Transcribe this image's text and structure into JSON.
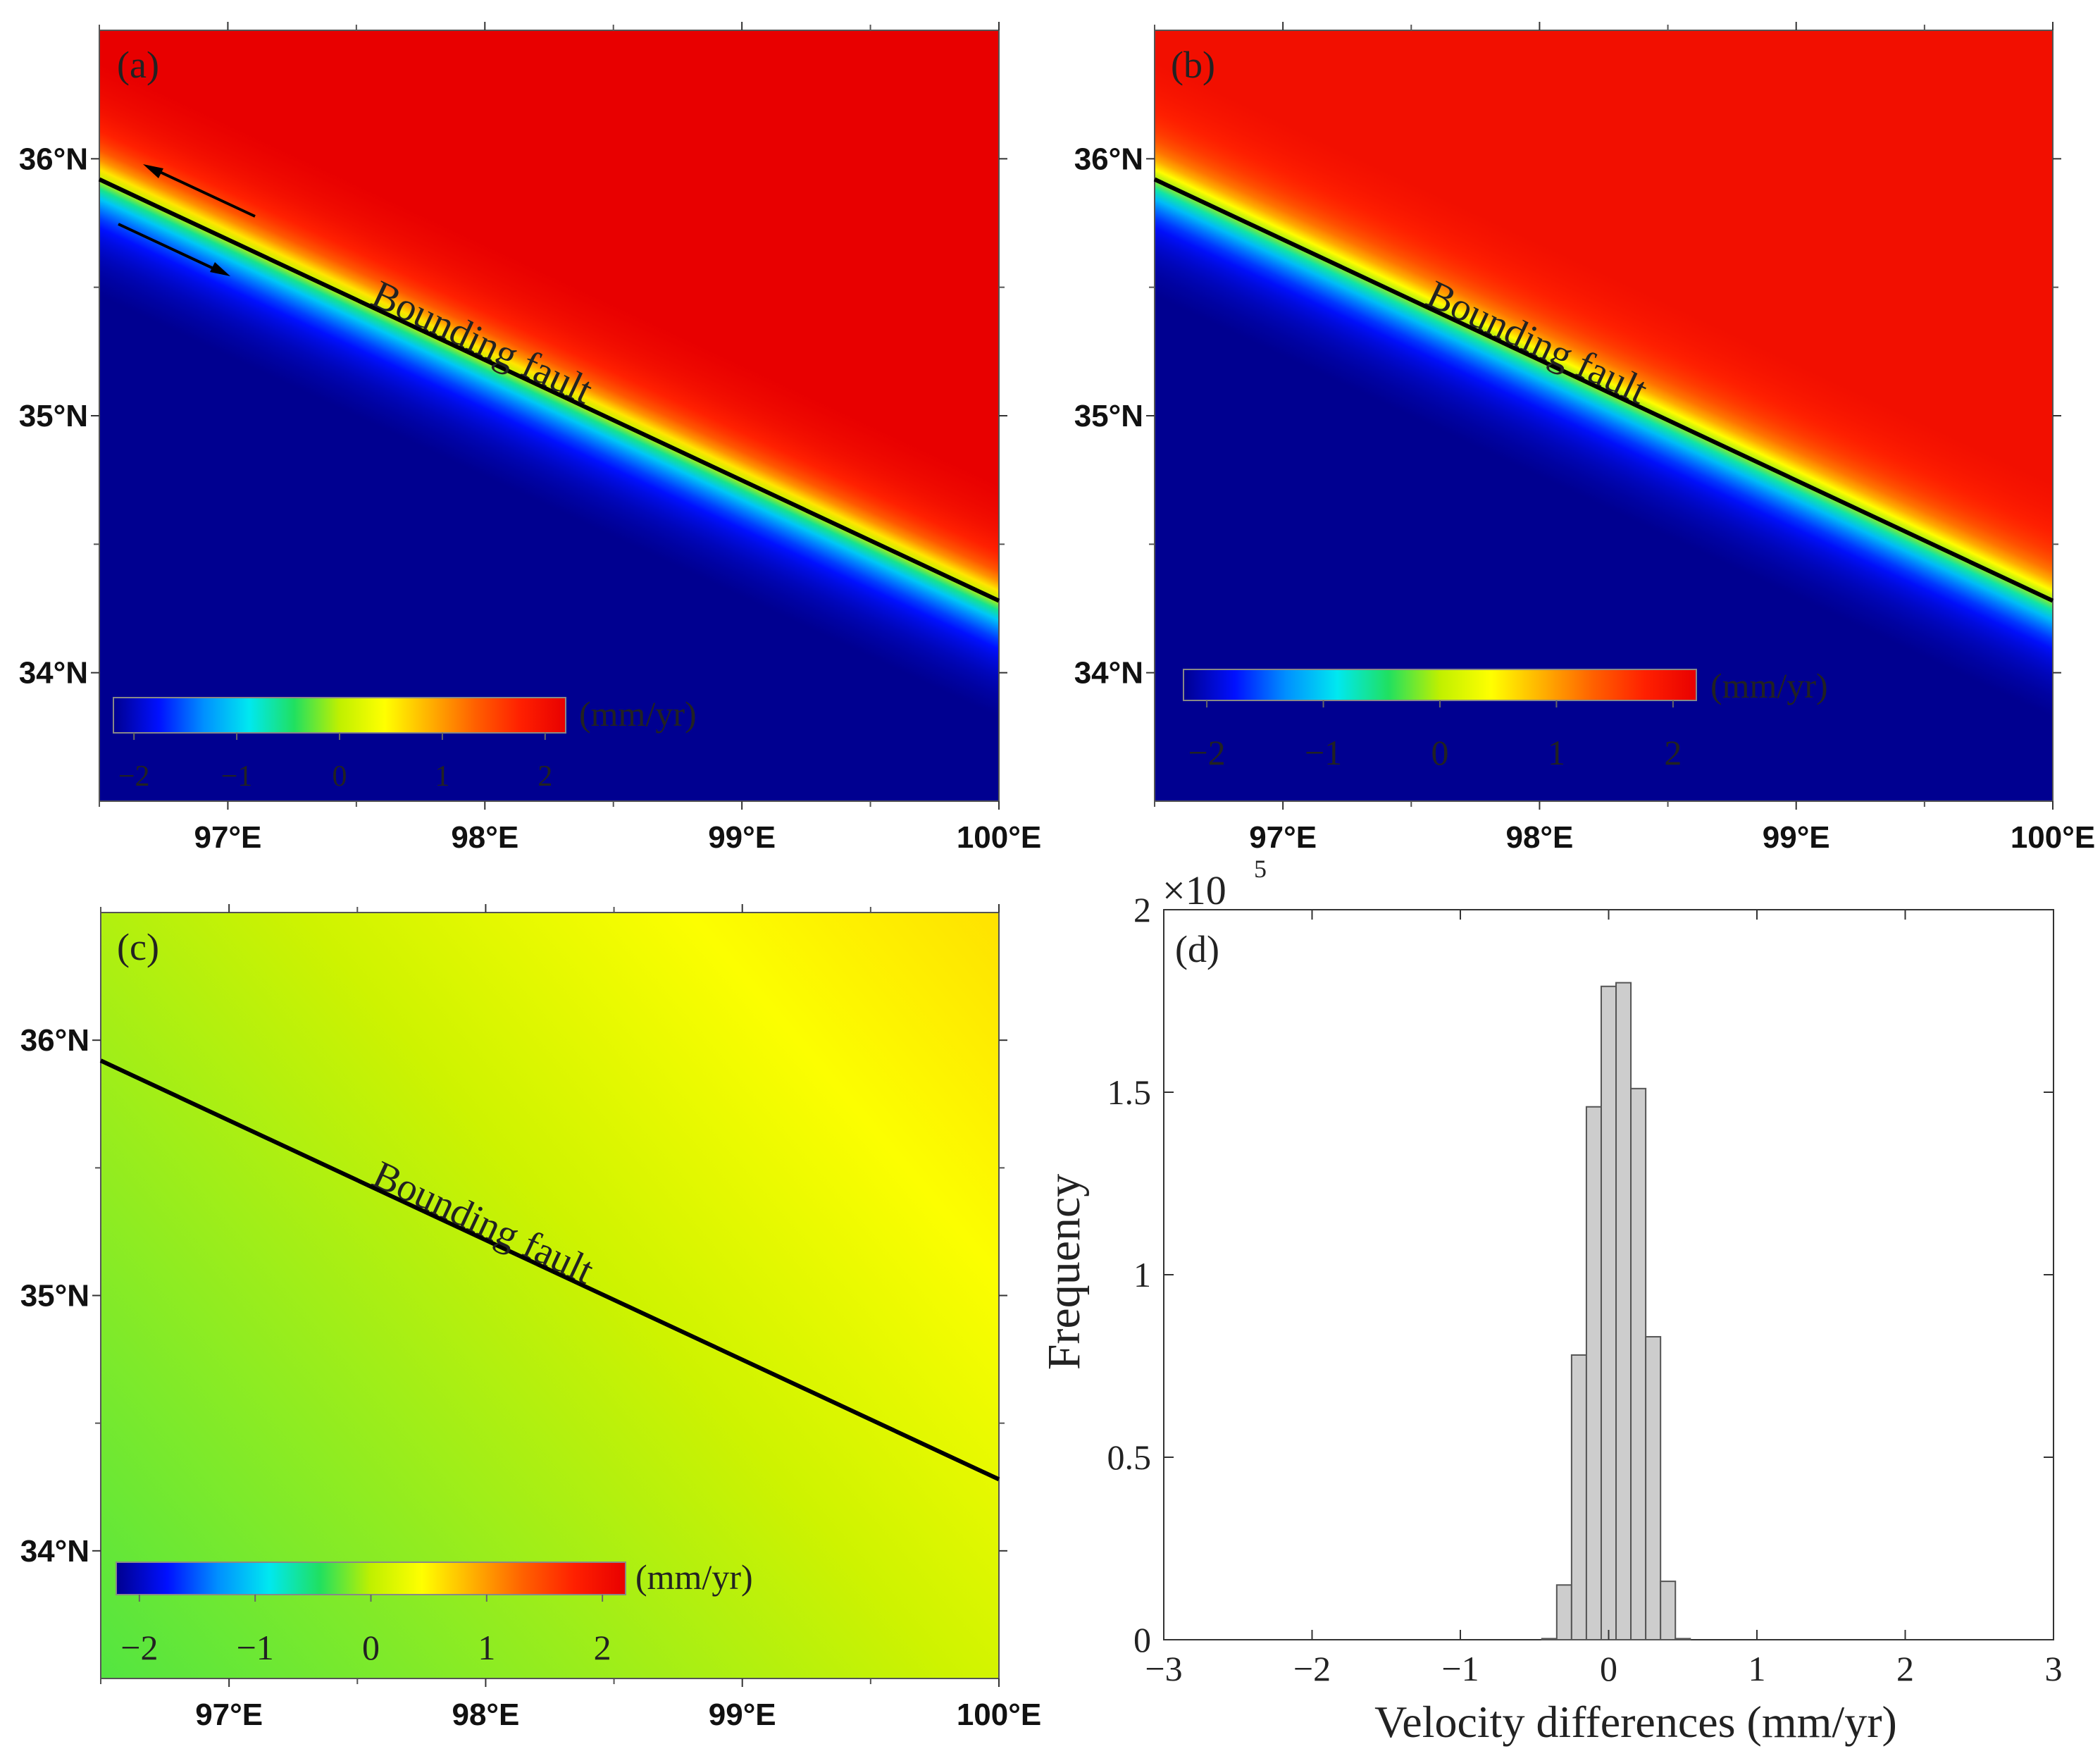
{
  "chart_data": [
    {
      "type": "heatmap",
      "panel": "(a)",
      "x_ticks": [
        "97°E",
        "98°E",
        "99°E",
        "100°E"
      ],
      "y_ticks": [
        "36°N",
        "35°N",
        "34°N"
      ],
      "xlim": [
        96.5,
        100.0
      ],
      "ylim": [
        33.5,
        36.5
      ],
      "fault_line": {
        "start": [
          96.5,
          35.92
        ],
        "end": [
          100.0,
          34.28
        ]
      },
      "fault_label": "Bounding fault",
      "colorbar": {
        "ticks": [
          "−2",
          "−1",
          "0",
          "1",
          "2"
        ],
        "unit": "(mm/yr)",
        "range": [
          -2.2,
          2.2
        ]
      },
      "colormap": [
        "#000090",
        "#0010ff",
        "#0090ff",
        "#00e8f0",
        "#20e060",
        "#c0f000",
        "#ffff00",
        "#ffb000",
        "#ff6000",
        "#ff2000",
        "#e80000"
      ],
      "values_north": 2.2,
      "values_south": -2.2,
      "note": "sense-of-slip arrows near fault"
    },
    {
      "type": "heatmap",
      "panel": "(b)",
      "x_ticks": [
        "97°E",
        "98°E",
        "99°E",
        "100°E"
      ],
      "y_ticks": [
        "36°N",
        "35°N",
        "34°N"
      ],
      "xlim": [
        96.5,
        100.0
      ],
      "ylim": [
        33.5,
        36.5
      ],
      "fault_line": {
        "start": [
          96.5,
          35.92
        ],
        "end": [
          100.0,
          34.28
        ]
      },
      "fault_label": "Bounding fault",
      "colorbar": {
        "ticks": [
          "−2",
          "−1",
          "0",
          "1",
          "2"
        ],
        "unit": "(mm/yr)",
        "range": [
          -2.2,
          2.2
        ]
      },
      "values_north": 2.0,
      "values_south": -2.2
    },
    {
      "type": "heatmap",
      "panel": "(c)",
      "x_ticks": [
        "97°E",
        "98°E",
        "99°E",
        "100°E"
      ],
      "y_ticks": [
        "36°N",
        "35°N",
        "34°N"
      ],
      "xlim": [
        96.5,
        100.0
      ],
      "ylim": [
        33.5,
        36.5
      ],
      "fault_line": {
        "start": [
          96.5,
          35.92
        ],
        "end": [
          100.0,
          34.28
        ]
      },
      "fault_label": "Bounding fault",
      "colorbar": {
        "ticks": [
          "−2",
          "−1",
          "0",
          "1",
          "2"
        ],
        "unit": "(mm/yr)",
        "range": [
          -2.2,
          2.2
        ]
      },
      "values_range": [
        -0.3,
        0.6
      ]
    },
    {
      "type": "bar",
      "panel": "(d)",
      "title": "",
      "xlabel": "Velocity differences (mm/yr)",
      "ylabel": "Frequency",
      "x_ticks": [
        "−3",
        "−2",
        "−1",
        "0",
        "1",
        "2",
        "3"
      ],
      "y_ticks": [
        "0",
        "0.5",
        "1",
        "1.5",
        "2"
      ],
      "y_multiplier": "×10",
      "y_multiplier_exp": "5",
      "xlim": [
        -3,
        3
      ],
      "ylim": [
        0,
        2
      ],
      "bin_width": 0.1,
      "bins": [
        {
          "x": -0.4,
          "y": 0.003
        },
        {
          "x": -0.3,
          "y": 0.15
        },
        {
          "x": -0.2,
          "y": 0.78
        },
        {
          "x": -0.1,
          "y": 1.46
        },
        {
          "x": 0.0,
          "y": 1.79
        },
        {
          "x": 0.1,
          "y": 1.8
        },
        {
          "x": 0.2,
          "y": 1.51
        },
        {
          "x": 0.3,
          "y": 0.83
        },
        {
          "x": 0.4,
          "y": 0.16
        },
        {
          "x": 0.5,
          "y": 0.003
        }
      ]
    }
  ]
}
